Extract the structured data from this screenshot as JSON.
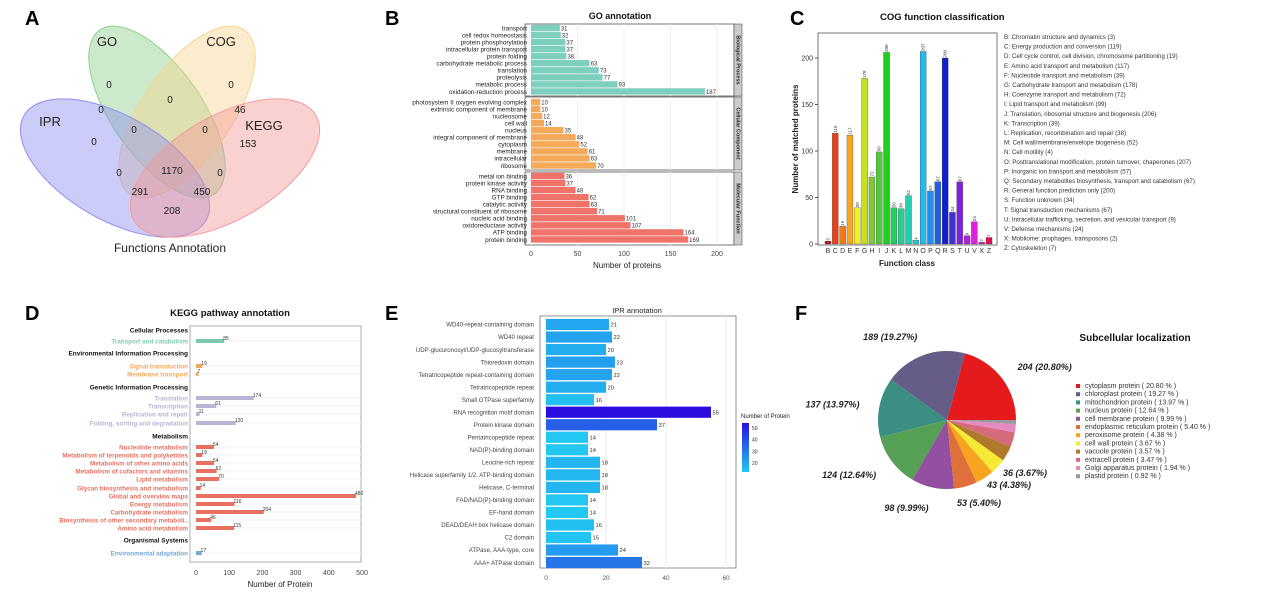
{
  "panel_letters": [
    "A",
    "B",
    "C",
    "D",
    "E",
    "F"
  ],
  "chart_data": [
    {
      "type": "venn",
      "panel": "A",
      "title": "Functions Annotation",
      "sets": [
        {
          "name": "GO",
          "color": "#8fcf8f"
        },
        {
          "name": "COG",
          "color": "#f5d58f"
        },
        {
          "name": "IPR",
          "color": "#8f8ff0"
        },
        {
          "name": "KEGG",
          "color": "#f59a9a"
        }
      ],
      "regions": [
        "0",
        "0",
        "0",
        "0",
        "46",
        "0",
        "0",
        "0",
        "153",
        "0",
        "1170",
        "0",
        "291",
        "450",
        "208"
      ]
    },
    {
      "type": "bar",
      "panel": "B",
      "title": "GO annotation",
      "xlabel": "Number of proteins",
      "xlim": [
        0,
        200
      ],
      "xticks": [
        "0",
        "50",
        "100",
        "150",
        "200"
      ],
      "groups": [
        {
          "name": "Biological Process",
          "color": "#7fcfbf",
          "categories": [
            "transport",
            "cell redox homeostasis",
            "protein phosphorylation",
            "intracellular protein transport",
            "protein folding",
            "carbohydrate metabolic process",
            "translation",
            "proteolysis",
            "metabolic process",
            "oxidation-reduction process"
          ],
          "values": [
            31,
            32,
            37,
            37,
            38,
            63,
            73,
            77,
            93,
            187
          ]
        },
        {
          "name": "Cellular Component",
          "color": "#f5a95a",
          "categories": [
            "photosystem II oxygen evolving complex",
            "extrinsic component of membrane",
            "nucleosome",
            "cell wall",
            "nucleus",
            "integral component of membrane",
            "cytoplasm",
            "membrane",
            "intracellular",
            "ribosome"
          ],
          "values": [
            10,
            10,
            12,
            14,
            35,
            48,
            52,
            61,
            63,
            70
          ]
        },
        {
          "name": "Molecular Function",
          "color": "#f0736a",
          "categories": [
            "metal ion binding",
            "protein kinase activity",
            "RNA binding",
            "GTP binding",
            "catalytic activity",
            "structural constituent of ribosome",
            "nucleic acid binding",
            "oxidoreductase activity",
            "ATP binding",
            "protein binding"
          ],
          "values": [
            36,
            37,
            48,
            62,
            63,
            71,
            101,
            107,
            164,
            169
          ]
        }
      ]
    },
    {
      "type": "bar",
      "panel": "C",
      "title": "COG function classification",
      "xlabel": "Function class",
      "ylabel": "Number of matched proteins",
      "ylim": [
        0,
        225
      ],
      "yticks": [
        "0",
        "50",
        "100",
        "150",
        "200"
      ],
      "categories": [
        "B",
        "C",
        "D",
        "E",
        "F",
        "G",
        "H",
        "I",
        "J",
        "K",
        "L",
        "M",
        "N",
        "O",
        "P",
        "Q",
        "R",
        "S",
        "T",
        "U",
        "V",
        "X",
        "Z"
      ],
      "values": [
        3,
        119,
        19,
        117,
        39,
        178,
        72,
        99,
        206,
        39,
        38,
        52,
        4,
        207,
        57,
        67,
        200,
        34,
        67,
        9,
        24,
        2,
        7
      ],
      "colors": [
        "#c01020",
        "#e8401a",
        "#f07a1a",
        "#f5a623",
        "#f8ee22",
        "#c6e020",
        "#7ec83a",
        "#4ccc3a",
        "#1ed01e",
        "#22d062",
        "#22d090",
        "#22d0b0",
        "#22c8d8",
        "#22b8f0",
        "#2090f0",
        "#2060e0",
        "#1020d0",
        "#4030d0",
        "#8020e0",
        "#b020e0",
        "#e020e0",
        "#e020a0",
        "#e01050"
      ],
      "legend": [
        "B: Chromatin structure and dynamics  (3)",
        "C: Energy production and conversion  (119)",
        "D: Cell cycle control, cell division, chromosome partitioning  (19)",
        "E: Amino acid transport and metabolism  (117)",
        "F: Nucleotide transport and metabolism  (39)",
        "G: Carbohydrate transport and metabolism  (178)",
        "H: Coenzyme transport and metabolism  (72)",
        "I: Lipid transport and metabolism  (99)",
        "J: Translation, ribosomal structure and biogenesis  (206)",
        "K: Transcription  (39)",
        "L: Replication, recombination and repair  (38)",
        "M: Cell wall/membrane/envelope biogenesis  (52)",
        "N: Cell motility  (4)",
        "O: Posttranslational modification, protein turnover, chaperones  (207)",
        "P: Inorganic ion transport and metabolism  (57)",
        "Q: Secondary metabolites biosynthesis, transport and catabolism  (67)",
        "R: General function prediction only  (200)",
        "S: Function unknown  (34)",
        "T: Signal transduction mechanisms  (67)",
        "U: Intracellular trafficking, secretion, and vesicular transport  (9)",
        "V: Defense mechanisms  (24)",
        "X: Mobilome: prophages, transposons  (2)",
        "Z: Cytoskeleton  (7)"
      ]
    },
    {
      "type": "bar",
      "panel": "D",
      "title": "KEGG pathway annotation",
      "xlabel": "Number of Protein",
      "xlim": [
        0,
        500
      ],
      "xticks": [
        "0",
        "100",
        "200",
        "300",
        "400",
        "500"
      ],
      "groups": [
        {
          "name": "Cellular Processes",
          "color": "#7fc8b0",
          "categories": [
            "Transport and catabolism"
          ],
          "values": [
            85
          ]
        },
        {
          "name": "Environmental Information Processing",
          "color": "#f0a860",
          "categories": [
            "Signal transduction",
            "Membrane transport"
          ],
          "values": [
            19,
            7
          ]
        },
        {
          "name": "Genetic Information Processing",
          "color": "#b8b4d4",
          "categories": [
            "Translation",
            "Transcription",
            "Replication and repair",
            "Folding, sorting and degradation"
          ],
          "values": [
            174,
            61,
            11,
            120
          ]
        },
        {
          "name": "Metabolism",
          "color": "#e87060",
          "categories": [
            "Nucleotide metabolism",
            "Metabolism of terpenoids and polyketides",
            "Metabolism of other amino acids",
            "Metabolism of cofactors and vitamins",
            "Lipid metabolism",
            "Glycan biosynthesis and metabolism",
            "Global and overview maps",
            "Energy metabolism",
            "Carbohydrate metabolism",
            "Biosynthesis of other secondary metaboli..",
            "Amino acid metabolism"
          ],
          "values": [
            54,
            19,
            54,
            62,
            70,
            14,
            482,
            116,
            204,
            46,
            115
          ]
        },
        {
          "name": "Organismal Systems",
          "color": "#70a8d8",
          "categories": [
            "Environmental adaptation"
          ],
          "values": [
            17
          ]
        }
      ]
    },
    {
      "type": "bar",
      "panel": "E",
      "title": "IPR annotation",
      "xlim": [
        0,
        60
      ],
      "xticks": [
        "0",
        "20",
        "40",
        "60"
      ],
      "legend_title": "Number of Protein",
      "legend_ticks": [
        "50",
        "40",
        "30",
        "20"
      ],
      "color_low": "#22c8f2",
      "color_high": "#2a0ee0",
      "categories": [
        "WD40-repeat-containing domain",
        "WD40 repeat",
        "UDP-glucuronosyl/UDP-glucosyltransferase",
        "Thioredoxin domain",
        "Tetratricopeptide repeat-containing domain",
        "Tetratricopeptide repeat",
        "Small GTPase superfamily",
        "RNA recognition motif domain",
        "Protein kinase domain",
        "Pentatricopeptide repeat",
        "NAD(P)-binding domain",
        "Leucine-rich repeat",
        "Helicase superfamily 1/2, ATP-binding domain",
        "Helicase, C-terminal",
        "FAD/NAD(P)-binding domain",
        "EF-hand domain",
        "DEAD/DEAH box helicase domain",
        "C2 domain",
        "ATPase, AAA-type, core",
        "AAA+ ATPase domain"
      ],
      "values": [
        21,
        22,
        20,
        23,
        22,
        20,
        16,
        55,
        37,
        14,
        14,
        18,
        18,
        18,
        14,
        14,
        16,
        15,
        24,
        32
      ]
    },
    {
      "type": "pie",
      "panel": "F",
      "title": "Subcellular localization",
      "slices": [
        {
          "name": "cytoplasm protein",
          "legend": "cytoplasm protein  ( 20.80 % )",
          "count": 204,
          "percent": 20.8,
          "label": "204 (20.80%)",
          "color": "#e41a1c"
        },
        {
          "name": "chloroplast protein",
          "legend": "chloroplast protein  ( 19.27 % )",
          "count": 189,
          "percent": 19.27,
          "label": "189 (19.27%)",
          "color": "#655c88"
        },
        {
          "name": "mitochondrion protein",
          "legend": "mitochondrion protein  ( 13.97 % )",
          "count": 137,
          "percent": 13.97,
          "label": "137 (13.97%)",
          "color": "#3a8f82"
        },
        {
          "name": "nucleus protein",
          "legend": "nucleus protein  ( 12.64 % )",
          "count": 124,
          "percent": 12.64,
          "label": "124 (12.64%)",
          "color": "#56a056"
        },
        {
          "name": "cell membrane protein",
          "legend": "cell membrane protein  ( 9.99 % )",
          "count": 98,
          "percent": 9.99,
          "label": "98 (9.99%)",
          "color": "#9450a0"
        },
        {
          "name": "endoplasmic reticulum protein",
          "legend": "endoplasmic reticulum protein  ( 5.40 % )",
          "count": 53,
          "percent": 5.4,
          "label": "53 (5.40%)",
          "color": "#e0703a"
        },
        {
          "name": "peroxisome protein",
          "legend": "peroxisome protein  ( 4.38 % )",
          "count": 43,
          "percent": 4.38,
          "label": "43 (4.38%)",
          "color": "#f7a520"
        },
        {
          "name": "cell wall protein",
          "legend": "cell wall protein  ( 3.67 % )",
          "count": 36,
          "percent": 3.67,
          "label": "36 (3.67%)",
          "color": "#f5ea35"
        },
        {
          "name": "vacuole protein",
          "legend": "vacuole protein  ( 3.57 % )",
          "count": null,
          "percent": 3.57,
          "label": null,
          "color": "#b07a2c"
        },
        {
          "name": "extracell protein",
          "legend": "extracell protein  ( 3.47 % )",
          "count": null,
          "percent": 3.47,
          "label": null,
          "color": "#d56a7a"
        },
        {
          "name": "Golgi apparatus protein",
          "legend": "Golgi apparatus protein  ( 1.94 % )",
          "count": null,
          "percent": 1.94,
          "label": null,
          "color": "#e68ac2"
        },
        {
          "name": "plastid protein",
          "legend": "plastid protein  ( 0.92 % )",
          "count": null,
          "percent": 0.92,
          "label": null,
          "color": "#9a9a9a"
        }
      ]
    }
  ]
}
